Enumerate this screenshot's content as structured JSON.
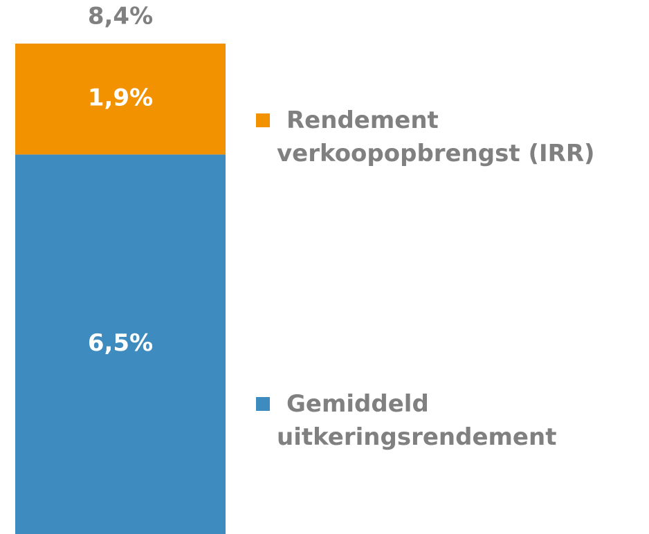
{
  "chart_data": {
    "type": "stacked_bar",
    "series": [
      {
        "name": "Gemiddeld uitkeringsrendement",
        "color": "#3d8bbf",
        "values": [
          6.5
        ],
        "value_labels": [
          "6,5%"
        ]
      },
      {
        "name": "Rendement verkoopopbrengst (IRR)",
        "color": "#f39200",
        "values": [
          1.9
        ],
        "value_labels": [
          "1,9%"
        ]
      }
    ],
    "total": 8.4,
    "total_label": "8,4%",
    "ylim": [
      0,
      8.4
    ]
  }
}
